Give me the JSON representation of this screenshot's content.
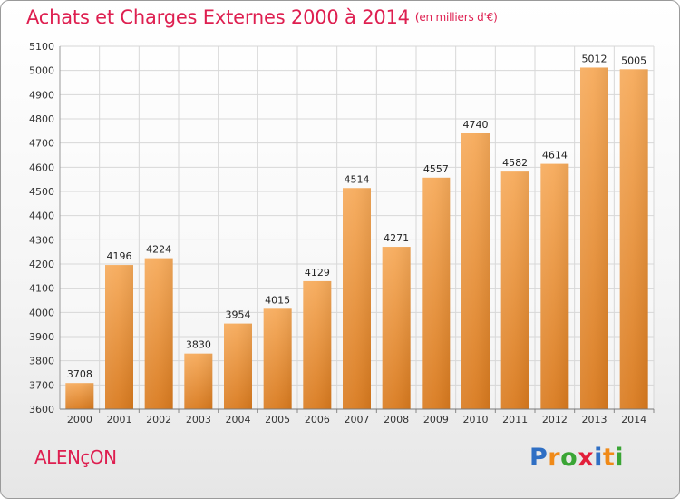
{
  "header": {
    "title": "Achats et Charges Externes 2000 à 2014",
    "unit": "(en milliers d'€)"
  },
  "location": "ALENçON",
  "logo": {
    "text": "Proxiti",
    "letters": [
      {
        "ch": "P",
        "color": "#2f6fc4"
      },
      {
        "ch": "r",
        "color": "#f08a18"
      },
      {
        "ch": "o",
        "color": "#3aa535"
      },
      {
        "ch": "x",
        "color": "#e21f3a"
      },
      {
        "ch": "i",
        "color": "#2f6fc4"
      },
      {
        "ch": "t",
        "color": "#f08a18"
      },
      {
        "ch": "i",
        "color": "#3aa535"
      }
    ]
  },
  "colors": {
    "accent": "#de1f50",
    "bar_top": "#f6aa5a",
    "bar_bottom": "#d97a1e",
    "grid": "#d7d7d7"
  },
  "chart_data": {
    "type": "bar",
    "title": "Achats et Charges Externes 2000 à 2014",
    "categories": [
      "2000",
      "2001",
      "2002",
      "2003",
      "2004",
      "2005",
      "2006",
      "2007",
      "2008",
      "2009",
      "2010",
      "2011",
      "2012",
      "2013",
      "2014"
    ],
    "values": [
      3708,
      4196,
      4224,
      3830,
      3954,
      4015,
      4129,
      4514,
      4271,
      4557,
      4740,
      4582,
      4614,
      5012,
      5005
    ],
    "ylim": [
      3600,
      5100
    ],
    "yticks": [
      3600,
      3700,
      3800,
      3900,
      4000,
      4100,
      4200,
      4300,
      4400,
      4500,
      4600,
      4700,
      4800,
      4900,
      5000,
      5100
    ],
    "xlabel": "",
    "ylabel": "",
    "grid": true,
    "data_labels": true
  }
}
